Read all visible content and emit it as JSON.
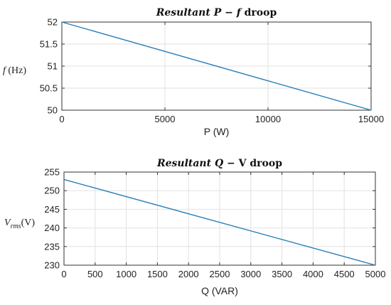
{
  "chart_data": [
    {
      "type": "line",
      "title_parts": [
        {
          "text": "Resultant ",
          "italic": true
        },
        {
          "text": "P",
          "italic": true
        },
        {
          "text": " − ",
          "italic": false
        },
        {
          "text": "f",
          "italic": true
        },
        {
          "text": " droop",
          "italic": false
        }
      ],
      "xlabel": "P (W)",
      "ylabel_main": "f",
      "ylabel_unit": " (Hz)",
      "xlim": [
        0,
        15000
      ],
      "ylim": [
        50,
        52
      ],
      "xticks": [
        0,
        5000,
        10000,
        15000
      ],
      "xtick_labels": [
        "0",
        "5000",
        "10000",
        "15000"
      ],
      "yticks": [
        50,
        50.5,
        51,
        51.5,
        52
      ],
      "ytick_labels": [
        "50",
        "50.5",
        "51",
        "51.5",
        "52"
      ],
      "grid": true,
      "series": [
        {
          "x": [
            0,
            15000
          ],
          "y": [
            52,
            50
          ],
          "color": "#2a7fb8"
        }
      ]
    },
    {
      "type": "line",
      "title_parts": [
        {
          "text": "Resultant ",
          "italic": true
        },
        {
          "text": "Q",
          "italic": true
        },
        {
          "text": " − V droop",
          "italic": false
        }
      ],
      "xlabel": "Q (VAR)",
      "ylabel_main": "V",
      "ylabel_sub": "rms",
      "ylabel_unit": "(V)",
      "xlim": [
        0,
        5000
      ],
      "ylim": [
        230,
        255
      ],
      "xticks": [
        0,
        500,
        1000,
        1500,
        2000,
        2500,
        3000,
        3500,
        4000,
        4500,
        5000
      ],
      "xtick_labels": [
        "0",
        "500",
        "1000",
        "1500",
        "2000",
        "2500",
        "3000",
        "3500",
        "4000",
        "4500",
        "5000"
      ],
      "yticks": [
        230,
        235,
        240,
        245,
        250,
        255
      ],
      "ytick_labels": [
        "230",
        "235",
        "240",
        "245",
        "250",
        "255"
      ],
      "grid": true,
      "series": [
        {
          "x": [
            0,
            5000
          ],
          "y": [
            253,
            230
          ],
          "color": "#2a7fb8"
        }
      ]
    }
  ]
}
